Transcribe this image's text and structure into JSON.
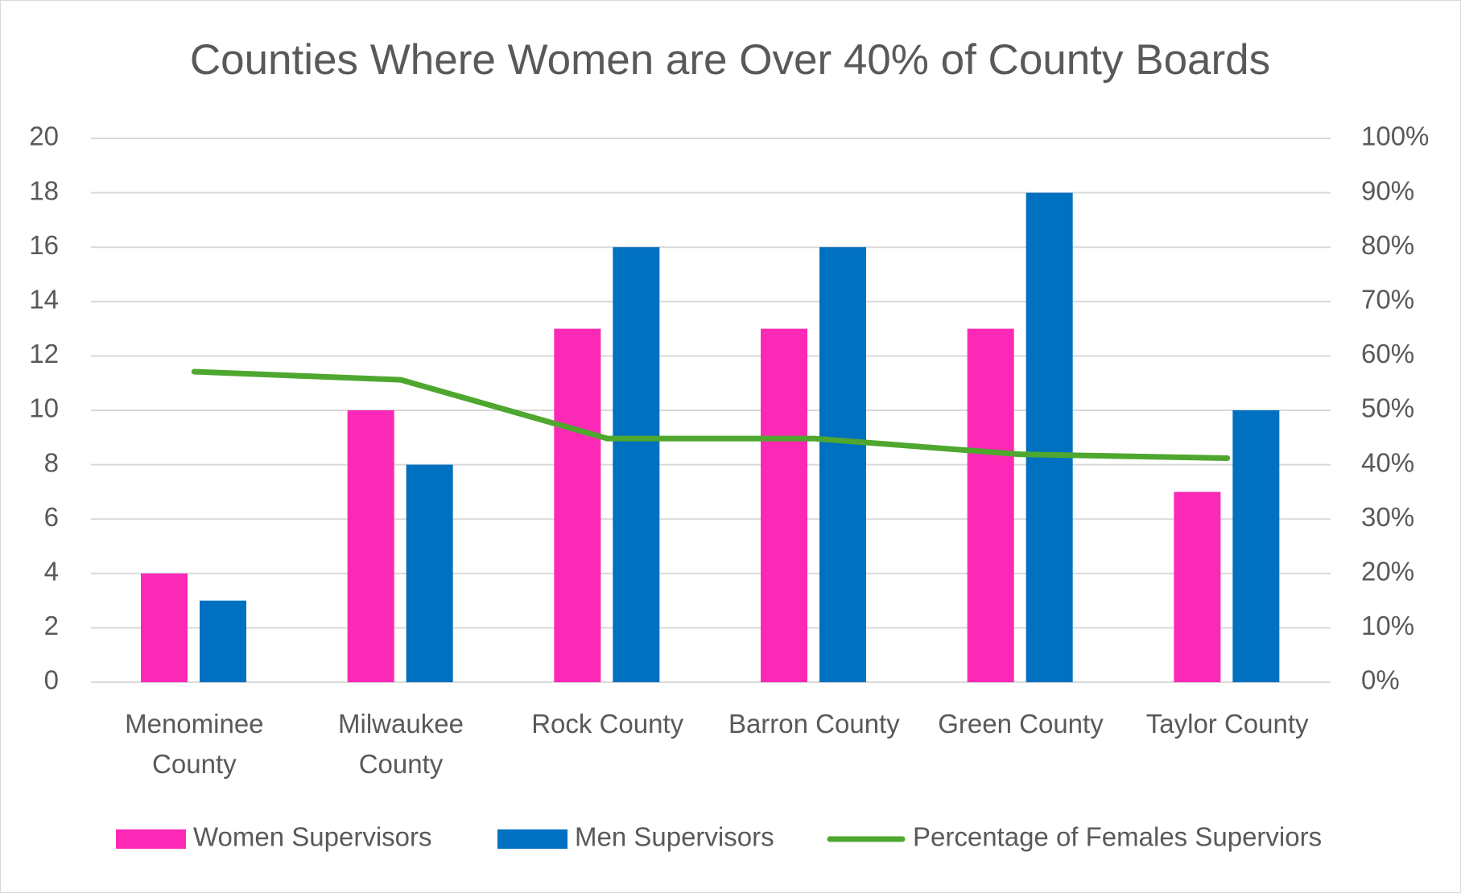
{
  "chart_data": {
    "type": "bar-line",
    "title": "Counties Where Women are Over 40% of County Boards",
    "categories": [
      "Menominee County",
      "Milwaukee County",
      "Rock County",
      "Barron County",
      "Green County",
      "Taylor County"
    ],
    "series": [
      {
        "name": "Women Supervisors",
        "color": "#fb29b5",
        "type": "bar",
        "values": [
          4,
          10,
          13,
          13,
          13,
          7
        ]
      },
      {
        "name": "Men Supervisors",
        "color": "#0070c0",
        "type": "bar",
        "values": [
          3,
          8,
          16,
          16,
          18,
          10
        ]
      },
      {
        "name": "Percentage of Females Superviors",
        "color": "#4ea72e",
        "type": "line",
        "axis": "y2",
        "values": [
          57.1,
          55.6,
          44.8,
          44.8,
          41.9,
          41.2
        ]
      }
    ],
    "ylim": [
      0,
      20
    ],
    "yticks": [
      0,
      2,
      4,
      6,
      8,
      10,
      12,
      14,
      16,
      18,
      20
    ],
    "y2lim": [
      0,
      100
    ],
    "y2ticks": [
      {
        "value": 0,
        "label": "0%"
      },
      {
        "value": 10,
        "label": "10%"
      },
      {
        "value": 20,
        "label": "20%"
      },
      {
        "value": 30,
        "label": "30%"
      },
      {
        "value": 40,
        "label": "40%"
      },
      {
        "value": 50,
        "label": "50%"
      },
      {
        "value": 60,
        "label": "60%"
      },
      {
        "value": 70,
        "label": "70%"
      },
      {
        "value": 80,
        "label": "80%"
      },
      {
        "value": 90,
        "label": "90%"
      },
      {
        "value": 100,
        "label": "100%"
      }
    ],
    "grid": true,
    "legend": "bottom"
  }
}
